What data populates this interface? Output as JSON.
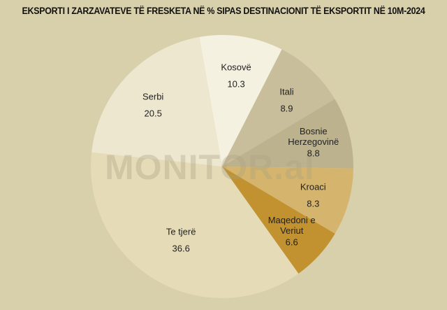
{
  "chart_data": {
    "type": "pie",
    "title": "EKSPORTI I ZARZAVATEVE TË FRESKETA NË % SIPAS DESTINACIONIT TË EKSPORTIT NË 10M-2024",
    "watermark": "MONITOR.al",
    "categories": [
      "Kosovë",
      "Itali",
      "Bosnie Herzegovinë",
      "Kroaci",
      "Maqedoni e Veriut",
      "Te tjerë",
      "Serbi"
    ],
    "values": [
      10.3,
      8.9,
      8.8,
      8.3,
      6.6,
      36.6,
      20.5
    ],
    "colors": [
      "#f5f1e1",
      "#c9be9b",
      "#bdb28e",
      "#d5b56d",
      "#c1922f",
      "#e5dbb6",
      "#ede7d0"
    ]
  }
}
